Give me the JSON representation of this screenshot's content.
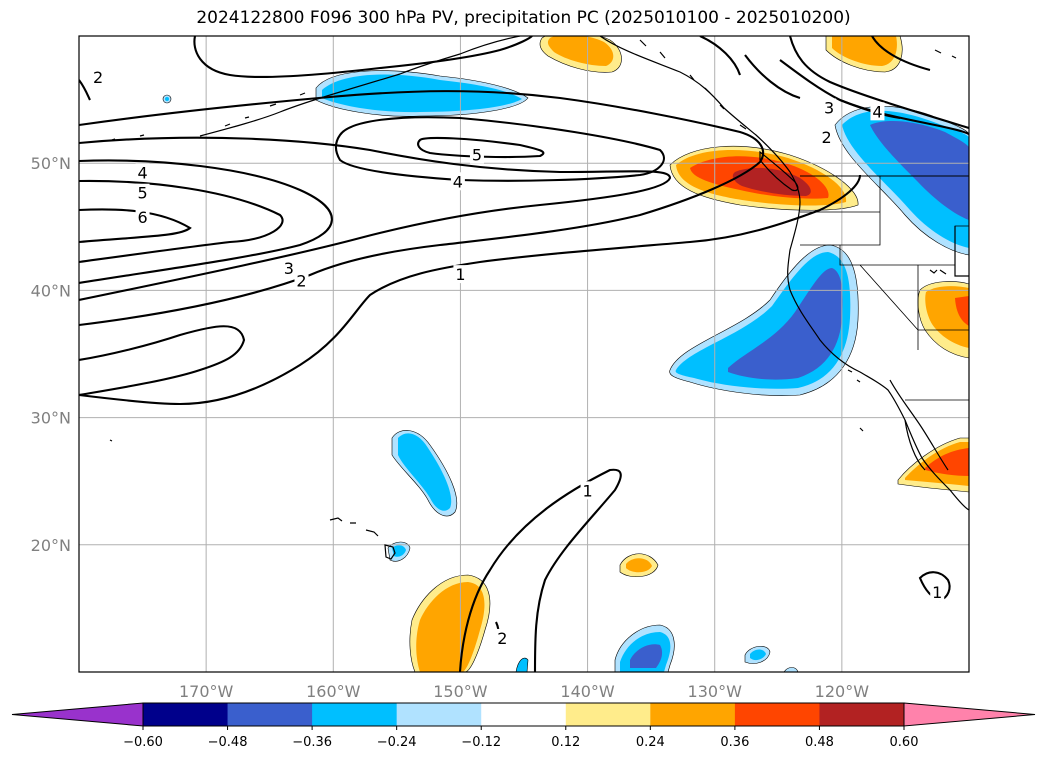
{
  "title": "2024122800 F096 300 hPa PV, precipitation PC (2025010100 - 2025010200)",
  "map": {
    "lon_range": [
      -180,
      -110
    ],
    "lat_range": [
      10,
      60
    ],
    "lat_ticks": [
      {
        "value": 50,
        "label": "50°N"
      },
      {
        "value": 40,
        "label": "40°N"
      },
      {
        "value": 30,
        "label": "30°N"
      },
      {
        "value": 20,
        "label": "20°N"
      }
    ],
    "lon_ticks": [
      {
        "value": -170,
        "label": "170°W"
      },
      {
        "value": -160,
        "label": "160°W"
      },
      {
        "value": -150,
        "label": "150°W"
      },
      {
        "value": -140,
        "label": "140°W"
      },
      {
        "value": -130,
        "label": "130°W"
      },
      {
        "value": -120,
        "label": "120°W"
      }
    ],
    "contour_labels": [
      {
        "text": "4",
        "lon": -175,
        "lat": 49.2
      },
      {
        "text": "5",
        "lon": -175,
        "lat": 47.6
      },
      {
        "text": "6",
        "lon": -175,
        "lat": 45.7
      },
      {
        "text": "5",
        "lon": -148.7,
        "lat": 50.6
      },
      {
        "text": "4",
        "lon": -150.2,
        "lat": 48.5
      },
      {
        "text": "3",
        "lon": -163.5,
        "lat": 41.7
      },
      {
        "text": "2",
        "lon": -162.5,
        "lat": 40.7
      },
      {
        "text": "1",
        "lon": -150,
        "lat": 41.2
      },
      {
        "text": "1",
        "lon": -140,
        "lat": 24.2
      },
      {
        "text": "2",
        "lon": -146.7,
        "lat": 12.6
      },
      {
        "text": "1",
        "lon": -112.5,
        "lat": 16.2
      },
      {
        "text": "2",
        "lon": -178.5,
        "lat": 56.7
      },
      {
        "text": "3",
        "lon": -121,
        "lat": 54.3
      },
      {
        "text": "4",
        "lon": -117.2,
        "lat": 54.0
      },
      {
        "text": "2",
        "lon": -121.2,
        "lat": 52.0
      }
    ]
  },
  "colorbar": {
    "ticks": [
      "−0.60",
      "−0.48",
      "−0.36",
      "−0.24",
      "−0.12",
      "0.12",
      "0.24",
      "0.36",
      "0.48",
      "0.60"
    ],
    "colors": [
      "#9932cc",
      "#00008b",
      "#3a5fcd",
      "#00bfff",
      "#b0e2ff",
      "#ffffff",
      "#ffec8b",
      "#ffa500",
      "#ff4500",
      "#b22222",
      "#ff82ab"
    ]
  }
}
